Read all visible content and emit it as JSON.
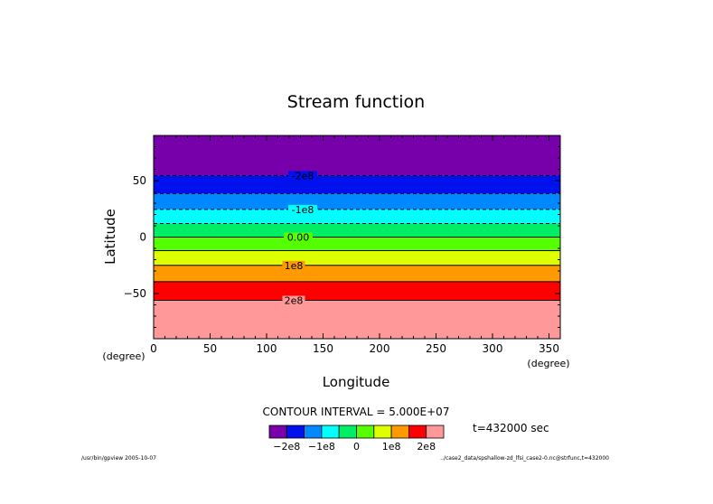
{
  "chart_data": {
    "type": "heatmap",
    "title": "Stream function",
    "xlabel": "Longitude",
    "ylabel": "Latitude",
    "x_unit": "(degree)",
    "y_unit": "(degree)",
    "xlim": [
      0,
      360
    ],
    "ylim": [
      -90,
      90
    ],
    "x_ticks": [
      0,
      50,
      100,
      150,
      200,
      250,
      300,
      350
    ],
    "y_ticks": [
      50,
      0,
      -50
    ],
    "bands": [
      {
        "lat_min": 54.5,
        "lat_max": 90,
        "color": "#7700aa"
      },
      {
        "lat_min": 38.5,
        "lat_max": 54.5,
        "color": "#0011ee"
      },
      {
        "lat_min": 24.5,
        "lat_max": 38.5,
        "color": "#0088ff"
      },
      {
        "lat_min": 12.0,
        "lat_max": 24.5,
        "color": "#00ffff"
      },
      {
        "lat_min": 0.0,
        "lat_max": 12.0,
        "color": "#00ee66"
      },
      {
        "lat_min": -12.0,
        "lat_max": 0.0,
        "color": "#55ff00"
      },
      {
        "lat_min": -25.0,
        "lat_max": -12.0,
        "color": "#ddff00"
      },
      {
        "lat_min": -39.5,
        "lat_max": -25.0,
        "color": "#ff9900"
      },
      {
        "lat_min": -56.0,
        "lat_max": -39.5,
        "color": "#ff0000"
      },
      {
        "lat_min": -90,
        "lat_max": -56.0,
        "color": "#ff9999"
      }
    ],
    "contours": [
      {
        "lat": 54.5,
        "dashed": true
      },
      {
        "lat": 38.5,
        "dashed": true
      },
      {
        "lat": 24.5,
        "dashed": true
      },
      {
        "lat": 12.0,
        "dashed": true
      },
      {
        "lat": 0.0,
        "dashed": false
      },
      {
        "lat": -12.0,
        "dashed": false
      },
      {
        "lat": -25.0,
        "dashed": false
      },
      {
        "lat": -39.5,
        "dashed": false
      },
      {
        "lat": -56.0,
        "dashed": false
      }
    ],
    "contour_labels": [
      {
        "text": "-2e8",
        "lat": 54.5,
        "lon": 132
      },
      {
        "text": "-1e8",
        "lat": 24.5,
        "lon": 132
      },
      {
        "text": "0.00",
        "lat": 0.0,
        "lon": 128
      },
      {
        "text": "1e8",
        "lat": -25.0,
        "lon": 124
      },
      {
        "text": "2e8",
        "lat": -56.0,
        "lon": 124
      }
    ],
    "contour_interval_text": "CONTOUR INTERVAL = 5.000E+07",
    "time_text": "t=432000 sec",
    "colorbar": {
      "colors": [
        "#7700aa",
        "#0011ee",
        "#0088ff",
        "#00ffff",
        "#00ee66",
        "#55ff00",
        "#ddff00",
        "#ff9900",
        "#ff0000",
        "#ff9999"
      ],
      "tick_labels": [
        "-2e8",
        "-1e8",
        "0",
        "1e8",
        "2e8"
      ]
    },
    "footer_left": "/usr/bin/gpview  2005-10-07",
    "footer_right": "../case2_data/spshallow-zd_lfsi_case2-0.nc@strfunc,t=432000"
  }
}
